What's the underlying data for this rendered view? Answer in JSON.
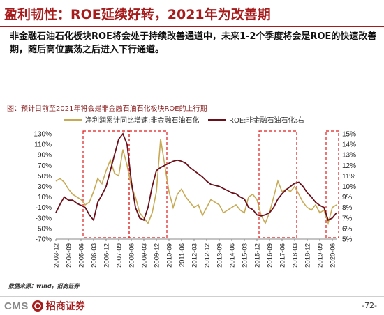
{
  "slide": {
    "title": "盈利韧性：ROE延续好转，2021年为改善期",
    "summary": "非金融石油石化板块ROE将会处于持续改善通道中，未来1-2个季度将会是ROE的快速改善期，随后高位震荡之后进入下行通道。",
    "chart_title": "图：预计目前至2021年将会是非金融石油石化板块ROE的上行期",
    "source": "数据来源：wind，招商证券",
    "logo_text": "CMS",
    "logo_cn": "招商证券",
    "page_number": "-72-"
  },
  "chart_data": {
    "type": "line",
    "x": [
      "2003-12",
      "2004-03",
      "2004-06",
      "2004-09",
      "2004-12",
      "2005-03",
      "2005-06",
      "2005-09",
      "2005-12",
      "2006-03",
      "2006-06",
      "2006-09",
      "2006-12",
      "2007-03",
      "2007-06",
      "2007-09",
      "2007-12",
      "2008-03",
      "2008-06",
      "2008-09",
      "2008-12",
      "2009-03",
      "2009-06",
      "2009-09",
      "2009-12",
      "2010-03",
      "2010-06",
      "2010-09",
      "2010-12",
      "2011-03",
      "2011-06",
      "2011-09",
      "2011-12",
      "2012-03",
      "2012-06",
      "2012-09",
      "2012-12",
      "2013-03",
      "2013-06",
      "2013-09",
      "2013-12",
      "2014-03",
      "2014-06",
      "2014-09",
      "2014-12",
      "2015-03",
      "2015-06",
      "2015-09",
      "2015-12",
      "2016-03",
      "2016-06",
      "2016-09",
      "2016-12",
      "2017-03",
      "2017-06",
      "2017-09",
      "2017-12",
      "2018-03",
      "2018-06",
      "2018-09",
      "2018-12",
      "2019-03",
      "2019-06",
      "2019-09",
      "2019-12",
      "2020-03",
      "2020-06",
      "2020-09"
    ],
    "xtick_labels": [
      "2003-12",
      "2004-09",
      "2005-06",
      "2006-03",
      "2006-12",
      "2007-09",
      "2008-06",
      "2009-03",
      "2009-12",
      "2010-09",
      "2011-06",
      "2012-03",
      "2012-12",
      "2013-09",
      "2014-06",
      "2015-03",
      "2015-12",
      "2016-09",
      "2017-06",
      "2018-03",
      "2018-12",
      "2019-09",
      "2020-06"
    ],
    "series": [
      {
        "name": "净利润累计同比增速:非金融石油石化",
        "color": "#c8aa56",
        "axis": "left",
        "values": [
          40,
          45,
          38,
          25,
          15,
          10,
          5,
          -5,
          0,
          20,
          45,
          35,
          60,
          80,
          55,
          50,
          100,
          70,
          30,
          10,
          -20,
          -30,
          -40,
          -20,
          20,
          120,
          70,
          20,
          -10,
          15,
          25,
          10,
          0,
          -10,
          -5,
          -25,
          -10,
          5,
          0,
          -5,
          -20,
          -15,
          -10,
          -5,
          -15,
          -20,
          10,
          15,
          5,
          -25,
          -40,
          -20,
          10,
          40,
          20,
          25,
          20,
          30,
          15,
          0,
          -10,
          -15,
          -5,
          -20,
          -15,
          -40,
          -10,
          -5
        ]
      },
      {
        "name": "ROE:非金融石油石化:右",
        "color": "#6b0f1a",
        "axis": "right",
        "values": [
          7.5,
          8.3,
          9.0,
          8.7,
          8.7,
          8.4,
          8.2,
          8.0,
          7.3,
          6.8,
          8.5,
          9.2,
          10.0,
          11.5,
          13.0,
          14.5,
          15.0,
          14.0,
          10.5,
          8.0,
          7.0,
          6.8,
          8.0,
          10.0,
          11.5,
          11.8,
          12.0,
          12.2,
          12.4,
          12.5,
          12.4,
          12.2,
          11.8,
          11.5,
          11.2,
          10.9,
          10.5,
          10.2,
          10.1,
          10.0,
          9.8,
          9.6,
          9.4,
          9.3,
          9.0,
          8.8,
          8.0,
          7.8,
          7.3,
          7.2,
          7.3,
          7.5,
          8.0,
          8.8,
          9.3,
          9.7,
          10.0,
          10.3,
          10.4,
          10.0,
          9.4,
          9.0,
          8.5,
          8.2,
          8.0,
          6.8,
          7.0,
          7.5
        ]
      }
    ],
    "y_left": {
      "min": -70,
      "max": 130,
      "ticks": [
        "130%",
        "110%",
        "90%",
        "70%",
        "50%",
        "30%",
        "10%",
        "-10%",
        "-30%",
        "-50%",
        "-70%"
      ]
    },
    "y_right": {
      "min": 5,
      "max": 15,
      "ticks": [
        "15%",
        "14%",
        "13%",
        "12%",
        "11%",
        "10%",
        "9%",
        "8%",
        "7%",
        "6%",
        "5%"
      ]
    },
    "highlight_ranges": [
      [
        "2005-09",
        "2008-03"
      ],
      [
        "2008-06",
        "2010-06"
      ],
      [
        "2016-03",
        "2018-03"
      ],
      [
        "2020-03",
        "2020-09"
      ]
    ],
    "highlight_color": "#e01b1b",
    "legend_position": "top",
    "grid": false
  }
}
